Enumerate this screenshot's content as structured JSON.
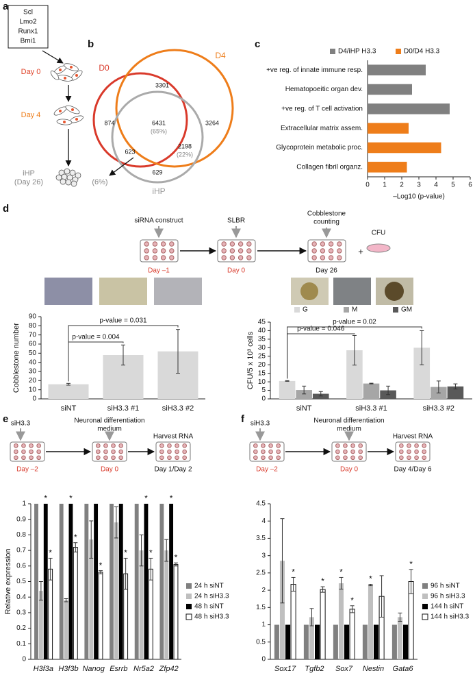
{
  "panel_labels": [
    "a",
    "b",
    "c",
    "d",
    "e",
    "f"
  ],
  "panel_a": {
    "factors": [
      "Scl",
      "Lmo2",
      "Runx1",
      "Bmi1"
    ],
    "day0": "Day 0",
    "day4": "Day 4",
    "ihp": "iHP",
    "ihp_day": "(Day 26)"
  },
  "panel_b": {
    "sets": [
      "D0",
      "D4",
      "iHP"
    ],
    "counts": [
      3301,
      874,
      3264,
      6431,
      623,
      2198,
      629
    ],
    "percents": [
      "(65%)",
      "(22%)",
      "(6%)"
    ]
  },
  "workflow_d": {
    "sirna": "siRNA construct",
    "slbr": "SLBR",
    "day_m1": "Day –1",
    "day0": "Day 0",
    "counting": [
      "Cobblestone",
      "counting"
    ],
    "plus": "+",
    "cfu": "CFU",
    "day26": "Day 26"
  },
  "workflow_e": {
    "sirna": "siH3.3",
    "medium": [
      "Neuronal differentiation",
      "medium"
    ],
    "harvest": "Harvest RNA",
    "days": [
      "Day –2",
      "Day 0",
      "Day 1/Day 2"
    ]
  },
  "workflow_f": {
    "sirna": "siH3.3",
    "medium": [
      "Neuronal differentiation",
      "medium"
    ],
    "harvest": "Harvest RNA",
    "days": [
      "Day –2",
      "Day 0",
      "Day 4/Day 6"
    ]
  },
  "chart_data": [
    {
      "type": "bar",
      "orientation": "horizontal",
      "categories": [
        "+ve reg. of innate immune resp.",
        "Hematopoeitic organ dev.",
        "+ve reg. of T cell activation",
        "Extracellular matrix assem.",
        "Glycoprotein metabolic proc.",
        "Collagen fibril organz."
      ],
      "series": [
        {
          "name": "D4/iHP H3.3",
          "color": "#808080",
          "values": [
            3.4,
            2.6,
            4.8,
            null,
            null,
            null
          ]
        },
        {
          "name": "D0/D4 H3.3",
          "color": "#ee7d1a",
          "values": [
            null,
            null,
            null,
            2.4,
            4.3,
            2.3
          ]
        }
      ],
      "xlim": [
        0,
        6
      ],
      "xticks": [
        0,
        1,
        2,
        3,
        4,
        5,
        6
      ],
      "xlabel": "–Log10 (p-value)",
      "legend": "top"
    },
    {
      "type": "bar",
      "categories": [
        "siNT",
        "siH3.3 #1",
        "siH3.3 #2"
      ],
      "values": [
        16,
        48,
        52
      ],
      "errors": [
        1,
        11,
        24
      ],
      "color": "#d9d9d9",
      "ylim": [
        0,
        90
      ],
      "yticks": [
        0,
        10,
        20,
        30,
        40,
        50,
        60,
        70,
        80,
        90
      ],
      "ylabel": "Cobblestone number",
      "annotations": [
        "p-value = 0.004",
        "p-value = 0.031"
      ]
    },
    {
      "type": "bar",
      "categories": [
        "siNT",
        "siH3.3 #1",
        "siH3.3 #2"
      ],
      "series": [
        {
          "name": "G",
          "color": "#d9d9d9",
          "values": [
            10.5,
            28.5,
            30
          ],
          "errors": [
            0.2,
            8.7,
            10
          ]
        },
        {
          "name": "M",
          "color": "#a6a6a6",
          "values": [
            5.2,
            9,
            7
          ],
          "errors": [
            2.3,
            0.2,
            3.5
          ]
        },
        {
          "name": "GM",
          "color": "#595959",
          "values": [
            3,
            5,
            7.3
          ],
          "errors": [
            1.3,
            2.5,
            1.5
          ]
        }
      ],
      "ylim": [
        0,
        45
      ],
      "yticks": [
        0,
        5,
        10,
        15,
        20,
        25,
        30,
        35,
        40,
        45
      ],
      "ylabel": "CFU/5 x 10³ cells",
      "legend": "top",
      "annotations": [
        "p-value = 0.046",
        "p-value = 0.02"
      ]
    },
    {
      "type": "bar",
      "categories": [
        "H3f3a",
        "H3f3b",
        "Nanog",
        "Esrrb",
        "Nr5a2",
        "Zfp42"
      ],
      "italic_categories": true,
      "series": [
        {
          "name": "24 h siNT",
          "color": "#808080",
          "values": [
            1,
            1,
            1,
            1,
            1,
            1
          ]
        },
        {
          "name": "24 h siH3.3",
          "color": "#bfbfbf",
          "values": [
            0.44,
            0.38,
            0.77,
            0.88,
            0.7,
            0.7
          ],
          "errors": [
            0.06,
            0.01,
            0.12,
            0.1,
            0.1,
            0.07
          ]
        },
        {
          "name": "48 h siNT",
          "color": "#000000",
          "values": [
            1,
            1,
            1,
            1,
            1,
            1
          ],
          "marks": [
            "*",
            "*",
            null,
            null,
            "*",
            "*"
          ]
        },
        {
          "name": "48 h siH3.3",
          "color": "#ffffff",
          "values": [
            0.58,
            0.72,
            0.56,
            0.55,
            0.58,
            0.61
          ],
          "errors": [
            0.07,
            0.03,
            0.01,
            0.1,
            0.07,
            0.01
          ],
          "marks": [
            "*",
            "*",
            "*",
            "*",
            "*",
            "*"
          ]
        }
      ],
      "ylim": [
        0,
        1
      ],
      "yticks": [
        0,
        0.1,
        0.2,
        0.3,
        0.4,
        0.5,
        0.6,
        0.7,
        0.8,
        0.9,
        1
      ],
      "ylabel": "Relative expression",
      "legend": "right"
    },
    {
      "type": "bar",
      "categories": [
        "Sox17",
        "Tgfb2",
        "Sox7",
        "Nestin",
        "Gata6"
      ],
      "italic_categories": true,
      "series": [
        {
          "name": "96 h siNT",
          "color": "#808080",
          "values": [
            1,
            1,
            1,
            1,
            1
          ]
        },
        {
          "name": "96 h siH3.3",
          "color": "#bfbfbf",
          "values": [
            2.85,
            1.22,
            2.2,
            2.15,
            1.22
          ],
          "errors": [
            1.22,
            0.25,
            0.17,
            0.02,
            0.12
          ],
          "marks": [
            null,
            null,
            "*",
            "*",
            null
          ]
        },
        {
          "name": "144 h siNT",
          "color": "#000000",
          "values": [
            1,
            1,
            1,
            1,
            1
          ]
        },
        {
          "name": "144 h siH3.3",
          "color": "#ffffff",
          "values": [
            2.17,
            2.02,
            1.45,
            1.82,
            2.25
          ],
          "errors": [
            0.2,
            0.08,
            0.1,
            0.6,
            0.35
          ],
          "marks": [
            "*",
            "*",
            "*",
            null,
            "*"
          ]
        }
      ],
      "ylim": [
        0,
        4.5
      ],
      "yticks": [
        0,
        0.5,
        1,
        1.5,
        2,
        2.5,
        3,
        3.5,
        4,
        4.5
      ],
      "legend": "right"
    }
  ]
}
